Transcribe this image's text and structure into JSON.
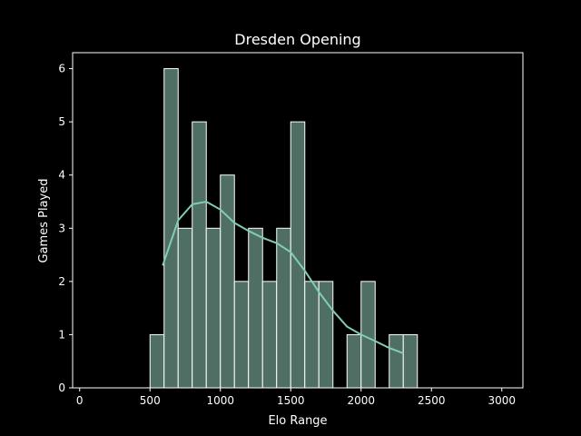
{
  "chart_data": {
    "type": "bar",
    "title": "Dresden Opening",
    "xlabel": "Elo Range",
    "ylabel": "Games Played",
    "xlim": [
      -50,
      3150
    ],
    "ylim": [
      0,
      6.3
    ],
    "x_ticks": [
      0,
      500,
      1000,
      1500,
      2000,
      2500,
      3000
    ],
    "y_ticks": [
      0,
      1,
      2,
      3,
      4,
      5,
      6
    ],
    "grid": false,
    "bins": [
      {
        "start": 500,
        "end": 600,
        "count": 1
      },
      {
        "start": 600,
        "end": 700,
        "count": 6
      },
      {
        "start": 700,
        "end": 800,
        "count": 3
      },
      {
        "start": 800,
        "end": 900,
        "count": 5
      },
      {
        "start": 900,
        "end": 1000,
        "count": 3
      },
      {
        "start": 1000,
        "end": 1100,
        "count": 4
      },
      {
        "start": 1100,
        "end": 1200,
        "count": 2
      },
      {
        "start": 1200,
        "end": 1300,
        "count": 3
      },
      {
        "start": 1300,
        "end": 1400,
        "count": 2
      },
      {
        "start": 1400,
        "end": 1500,
        "count": 3
      },
      {
        "start": 1500,
        "end": 1600,
        "count": 5
      },
      {
        "start": 1600,
        "end": 1700,
        "count": 2
      },
      {
        "start": 1700,
        "end": 1800,
        "count": 2
      },
      {
        "start": 1800,
        "end": 1900,
        "count": 0
      },
      {
        "start": 1900,
        "end": 2000,
        "count": 1
      },
      {
        "start": 2000,
        "end": 2100,
        "count": 2
      },
      {
        "start": 2100,
        "end": 2200,
        "count": 0
      },
      {
        "start": 2200,
        "end": 2300,
        "count": 1
      },
      {
        "start": 2300,
        "end": 2400,
        "count": 1
      }
    ],
    "kde": {
      "x": [
        590,
        700,
        800,
        900,
        1000,
        1100,
        1200,
        1300,
        1400,
        1500,
        1600,
        1700,
        1800,
        1900,
        2000,
        2100,
        2200,
        2300
      ],
      "y": [
        2.3,
        3.15,
        3.45,
        3.5,
        3.35,
        3.1,
        2.95,
        2.82,
        2.72,
        2.55,
        2.2,
        1.8,
        1.45,
        1.15,
        1.0,
        0.88,
        0.75,
        0.65
      ]
    },
    "colors": {
      "bar_fill": "#4f6f65",
      "bar_edge": "#ffffff",
      "kde_line": "#80cdb6",
      "axes": "#ffffff",
      "background": "#000000"
    }
  }
}
